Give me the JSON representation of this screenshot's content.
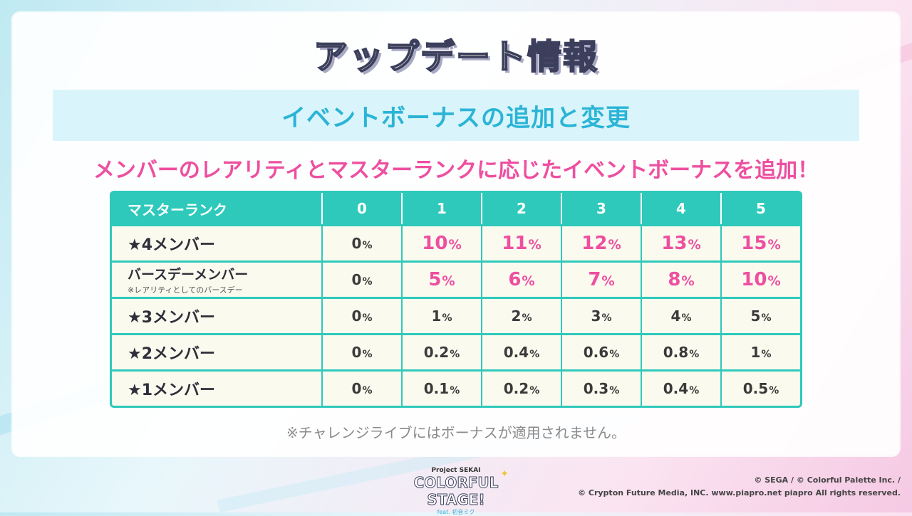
{
  "title": "アップデート情報",
  "banner": "イベントボーナスの追加と変更",
  "headline": "メンバーのレアリティとマスターランクに応じたイベントボーナスを追加！",
  "table": {
    "corner": "マスターランク",
    "columns": [
      "0",
      "1",
      "2",
      "3",
      "4",
      "5"
    ],
    "rows": [
      {
        "label": "★4メンバー",
        "values": [
          "0",
          "10",
          "11",
          "12",
          "13",
          "15"
        ]
      },
      {
        "label": "バースデーメンバー",
        "sublabel": "※レアリティとしてのバースデー",
        "values": [
          "0",
          "5",
          "6",
          "7",
          "8",
          "10"
        ]
      },
      {
        "label": "★3メンバー",
        "values": [
          "0",
          "1",
          "2",
          "3",
          "4",
          "5"
        ]
      },
      {
        "label": "★2メンバー",
        "values": [
          "0",
          "0.2",
          "0.4",
          "0.6",
          "0.8",
          "1"
        ]
      },
      {
        "label": "★1メンバー",
        "values": [
          "0",
          "0.1",
          "0.2",
          "0.3",
          "0.4",
          "0.5"
        ]
      }
    ],
    "unit": "%"
  },
  "note": "※チャレンジライブにはボーナスが適用されません。",
  "logo": {
    "line1": "Project SEKAI",
    "line2": "COLORFUL STAGE!",
    "line3": "feat. 初音ミク"
  },
  "copyright": {
    "line1": "© SEGA / © Colorful Palette Inc. /",
    "line2": "© Crypton Future Media, INC. www.piapro.net piapro All rights reserved."
  },
  "colors": {
    "accent_teal": "#2ec9bb",
    "accent_pink": "#ee4fa0",
    "banner_text": "#2bb4d6"
  }
}
